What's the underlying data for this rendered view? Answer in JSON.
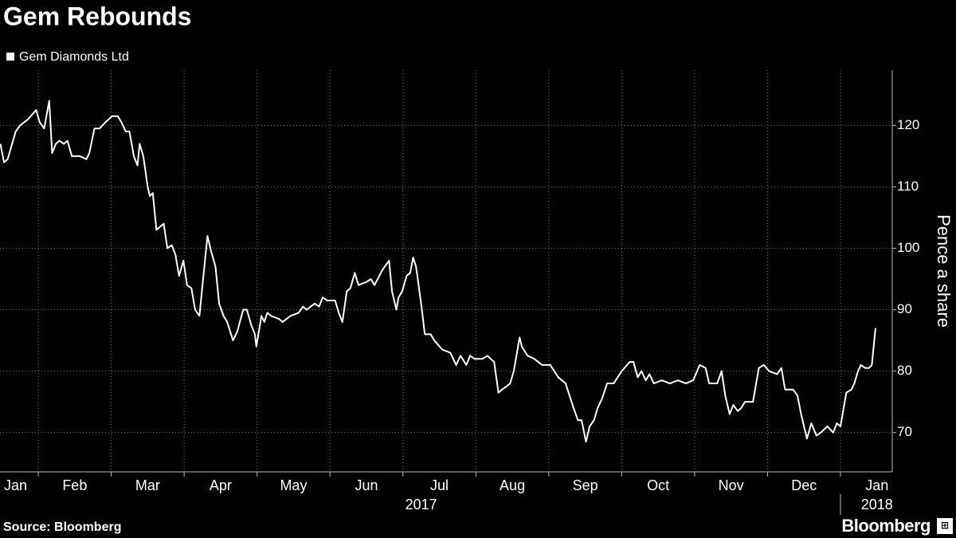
{
  "chart_data": {
    "type": "line",
    "title": "Gem Rebounds",
    "y_label": "Pence a share",
    "source": "Source: Bloomberg",
    "brand": "Bloomberg",
    "x": [
      0.48,
      0.53,
      0.58,
      0.69,
      0.75,
      0.86,
      0.97,
      1.02,
      1.08,
      1.15,
      1.19,
      1.24,
      1.29,
      1.35,
      1.4,
      1.46,
      1.57,
      1.66,
      1.7,
      1.77,
      1.84,
      1.92,
      2.01,
      2.09,
      2.14,
      2.2,
      2.25,
      2.31,
      2.36,
      2.39,
      2.44,
      2.5,
      2.53,
      2.57,
      2.62,
      2.72,
      2.77,
      2.83,
      2.88,
      2.93,
      2.99,
      3.04,
      3.1,
      3.15,
      3.21,
      3.26,
      3.32,
      3.37,
      3.43,
      3.48,
      3.54,
      3.59,
      3.67,
      3.73,
      3.81,
      3.86,
      3.92,
      3.97,
      3.99,
      4.06,
      4.1,
      4.14,
      4.19,
      4.3,
      4.35,
      4.46,
      4.57,
      4.63,
      4.68,
      4.79,
      4.85,
      4.9,
      4.96,
      5.07,
      5.12,
      5.17,
      5.23,
      5.28,
      5.34,
      5.39,
      5.5,
      5.56,
      5.61,
      5.72,
      5.81,
      5.85,
      5.91,
      5.94,
      5.99,
      6.05,
      6.1,
      6.14,
      6.18,
      6.25,
      6.3,
      6.38,
      6.43,
      6.54,
      6.65,
      6.73,
      6.79,
      6.87,
      6.92,
      6.98,
      7.09,
      7.16,
      7.25,
      7.31,
      7.36,
      7.42,
      7.47,
      7.52,
      7.6,
      7.63,
      7.71,
      7.8,
      7.91,
      8.02,
      8.13,
      8.23,
      8.34,
      8.4,
      8.45,
      8.51,
      8.56,
      8.62,
      8.67,
      8.73,
      8.8,
      8.89,
      9.0,
      9.11,
      9.16,
      9.22,
      9.27,
      9.33,
      9.38,
      9.44,
      9.55,
      9.66,
      9.77,
      9.88,
      9.98,
      10.07,
      10.15,
      10.2,
      10.31,
      10.37,
      10.42,
      10.48,
      10.53,
      10.59,
      10.64,
      10.69,
      10.8,
      10.88,
      10.95,
      11.02,
      11.13,
      11.19,
      11.24,
      11.35,
      11.41,
      11.46,
      11.54,
      11.6,
      11.67,
      11.73,
      11.82,
      11.9,
      11.95,
      12.0,
      12.08,
      12.15,
      12.19,
      12.24,
      12.28,
      12.34,
      12.39,
      12.43,
      12.48
    ],
    "series": [
      {
        "name": "Gem Diamonds Ltd",
        "color": "#ffffff",
        "axis": "y2",
        "values": [
          117,
          114,
          114.5,
          119,
          120,
          121,
          122.5,
          120.5,
          119.5,
          124,
          115.5,
          117,
          117.5,
          117,
          117.5,
          115,
          115,
          114.5,
          115.5,
          119.5,
          119.5,
          120.5,
          121.5,
          121.5,
          120.5,
          119,
          119,
          115,
          113.5,
          117,
          115,
          110,
          108.5,
          109,
          103,
          104,
          100,
          100.5,
          99,
          95.5,
          98,
          94,
          93.5,
          90,
          89,
          95,
          102,
          99.5,
          97,
          91,
          89,
          88,
          85,
          86.5,
          90,
          90,
          87.5,
          86,
          84,
          89,
          88,
          89.5,
          89,
          88.5,
          88,
          89,
          89.5,
          90.5,
          90,
          91,
          90.5,
          92,
          91.5,
          91.5,
          89.5,
          88,
          93,
          93.5,
          96,
          94,
          94.5,
          95,
          94,
          96.5,
          98,
          93,
          90,
          92,
          93,
          95.5,
          96,
          98.5,
          97,
          91,
          86,
          86,
          85,
          83.5,
          83,
          81,
          82.5,
          81,
          82.5,
          82,
          82,
          82.5,
          81.5,
          76.5,
          77,
          77.5,
          78,
          80,
          85.5,
          84,
          82.5,
          82,
          81,
          81,
          79,
          78,
          74,
          72,
          72,
          68.5,
          71,
          72,
          74,
          75.5,
          78,
          78,
          80,
          81.5,
          81.5,
          79,
          80,
          78.5,
          79.5,
          78,
          78.5,
          78,
          78.5,
          78,
          78.5,
          81,
          80.5,
          78,
          78,
          80,
          76,
          73,
          74.5,
          73.5,
          74,
          75,
          75,
          80.5,
          81,
          80,
          79.5,
          80.5,
          77,
          77,
          76,
          73,
          69,
          71.5,
          69.5,
          70,
          71,
          70,
          71.5,
          71,
          76.5,
          77,
          78,
          80,
          81,
          80.5,
          80.5,
          81,
          87
        ]
      }
    ],
    "xlim": [
      0.475,
      12.71
    ],
    "xticks": [
      {
        "value": 0.5,
        "label": "Jan"
      },
      {
        "value": 1.5,
        "label": "Feb"
      },
      {
        "value": 2.5,
        "label": "Mar"
      },
      {
        "value": 3.5,
        "label": "Apr"
      },
      {
        "value": 4.5,
        "label": "May"
      },
      {
        "value": 5.5,
        "label": "Jun"
      },
      {
        "value": 6.5,
        "label": "Jul"
      },
      {
        "value": 7.5,
        "label": "Aug"
      },
      {
        "value": 8.5,
        "label": "Sep"
      },
      {
        "value": 9.5,
        "label": "Oct"
      },
      {
        "value": 10.5,
        "label": "Nov"
      },
      {
        "value": 11.5,
        "label": "Dec"
      },
      {
        "value": 12.5,
        "label": "Jan"
      }
    ],
    "year_labels": [
      {
        "value": 6.25,
        "label": "2017"
      },
      {
        "value": 12.5,
        "label": "2018"
      }
    ],
    "y2lim": [
      63.6,
      129
    ],
    "y2ticks": [
      70,
      80,
      90,
      100,
      110,
      120
    ],
    "grid": true,
    "legend": "top-left"
  }
}
